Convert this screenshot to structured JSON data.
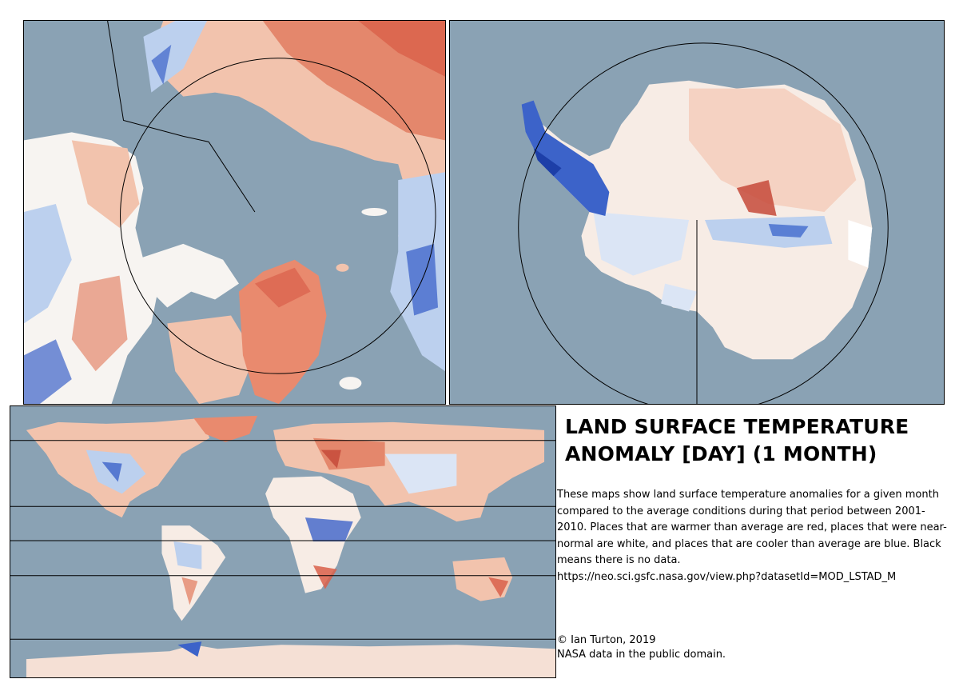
{
  "title": "LAND SURFACE TEMPERATURE ANOMALY [DAY] (1 MONTH)",
  "description": "These maps show land surface temperature anomalies for a given month compared to the average conditions during that period between 2001-2010. Places that are warmer than average are red, places that were near-normal are white, and places that are cooler than average are blue. Black means there is no data.",
  "source_url": "https://neo.sci.gsfc.nasa.gov/view.php?datasetId=MOD_LSTAD_M",
  "credit": "© Ian Turton, 2019",
  "license": "NASA data in the public domain.",
  "maps": [
    {
      "id": "arctic",
      "projection": "north polar stereographic"
    },
    {
      "id": "antarctic",
      "projection": "south polar stereographic"
    },
    {
      "id": "world",
      "projection": "plate carree"
    }
  ],
  "colors": {
    "ocean": "#8aa2b4",
    "warm": "#d9604a",
    "warm_light": "#f2c3ad",
    "neutral": "#f7f4f1",
    "cool_light": "#bcd0ee",
    "cool": "#3c63c9",
    "no_data": "#000000"
  }
}
